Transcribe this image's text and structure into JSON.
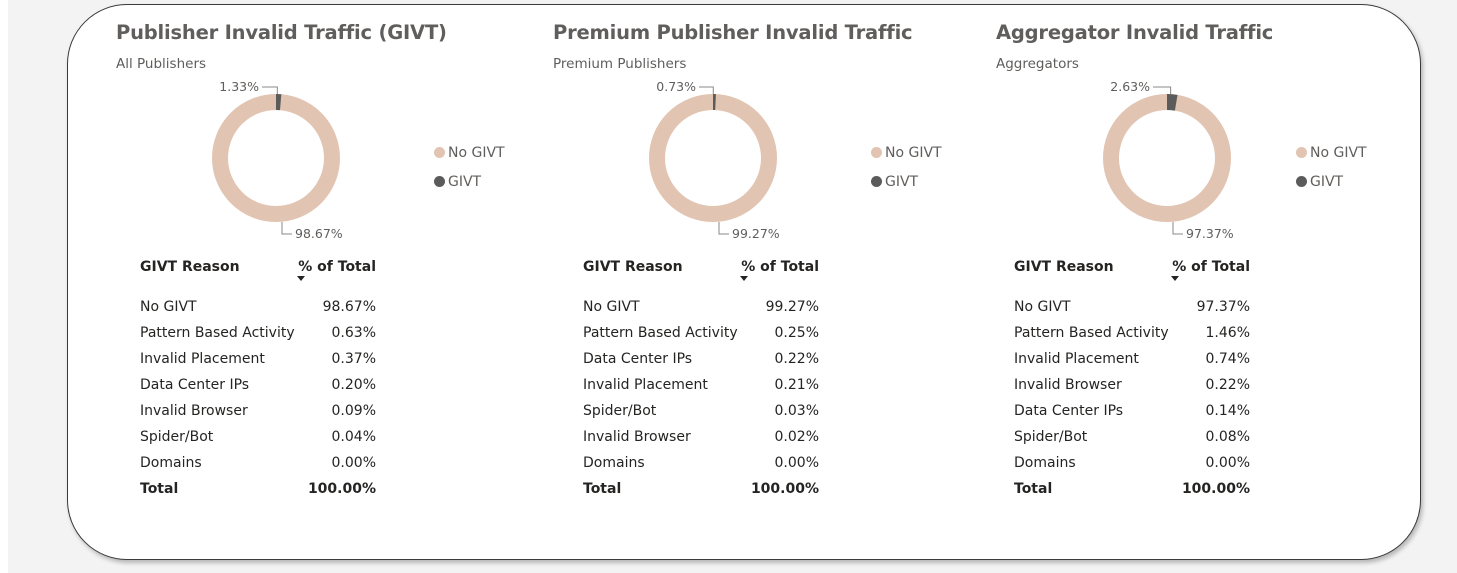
{
  "colors": {
    "no_givt": "#e1c4b1",
    "givt": "#5b5b5b",
    "leader": "#8a8886"
  },
  "panels": [
    {
      "title": "Publisher Invalid Traffic (GIVT)",
      "subtitle": "All Publishers",
      "donut_labels": {
        "givt": "1.33%",
        "no_givt": "98.67%"
      },
      "legend": [
        "No GIVT",
        "GIVT"
      ],
      "table": {
        "headers": [
          "GIVT Reason",
          "% of Total"
        ],
        "rows": [
          [
            "No GIVT",
            "98.67%"
          ],
          [
            "Pattern Based Activity",
            "0.63%"
          ],
          [
            "Invalid Placement",
            "0.37%"
          ],
          [
            "Data Center IPs",
            "0.20%"
          ],
          [
            "Invalid Browser",
            "0.09%"
          ],
          [
            "Spider/Bot",
            "0.04%"
          ],
          [
            "Domains",
            "0.00%"
          ]
        ],
        "total": [
          "Total",
          "100.00%"
        ]
      }
    },
    {
      "title": "Premium Publisher Invalid Traffic",
      "subtitle": "Premium Publishers",
      "donut_labels": {
        "givt": "0.73%",
        "no_givt": "99.27%"
      },
      "legend": [
        "No GIVT",
        "GIVT"
      ],
      "table": {
        "headers": [
          "GIVT Reason",
          "% of Total"
        ],
        "rows": [
          [
            "No GIVT",
            "99.27%"
          ],
          [
            "Pattern Based Activity",
            "0.25%"
          ],
          [
            "Data Center IPs",
            "0.22%"
          ],
          [
            "Invalid Placement",
            "0.21%"
          ],
          [
            "Spider/Bot",
            "0.03%"
          ],
          [
            "Invalid Browser",
            "0.02%"
          ],
          [
            "Domains",
            "0.00%"
          ]
        ],
        "total": [
          "Total",
          "100.00%"
        ]
      }
    },
    {
      "title": "Aggregator Invalid Traffic",
      "subtitle": "Aggregators",
      "donut_labels": {
        "givt": "2.63%",
        "no_givt": "97.37%"
      },
      "legend": [
        "No GIVT",
        "GIVT"
      ],
      "table": {
        "headers": [
          "GIVT Reason",
          "% of Total"
        ],
        "rows": [
          [
            "No GIVT",
            "97.37%"
          ],
          [
            "Pattern Based Activity",
            "1.46%"
          ],
          [
            "Invalid Placement",
            "0.74%"
          ],
          [
            "Invalid Browser",
            "0.22%"
          ],
          [
            "Data Center IPs",
            "0.14%"
          ],
          [
            "Spider/Bot",
            "0.08%"
          ],
          [
            "Domains",
            "0.00%"
          ]
        ],
        "total": [
          "Total",
          "100.00%"
        ]
      }
    }
  ],
  "chart_data": [
    {
      "type": "pie",
      "title": "Publisher Invalid Traffic (GIVT)",
      "subtitle": "All Publishers",
      "categories": [
        "No GIVT",
        "GIVT"
      ],
      "values": [
        98.67,
        1.33
      ],
      "legend": "right"
    },
    {
      "type": "pie",
      "title": "Premium Publisher Invalid Traffic",
      "subtitle": "Premium Publishers",
      "categories": [
        "No GIVT",
        "GIVT"
      ],
      "values": [
        99.27,
        0.73
      ],
      "legend": "right"
    },
    {
      "type": "pie",
      "title": "Aggregator Invalid Traffic",
      "subtitle": "Aggregators",
      "categories": [
        "No GIVT",
        "GIVT"
      ],
      "values": [
        97.37,
        2.63
      ],
      "legend": "right"
    }
  ]
}
